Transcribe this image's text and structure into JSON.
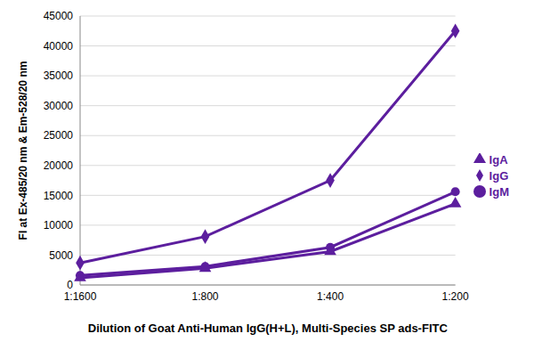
{
  "chart_data": {
    "type": "line",
    "xlabel": "Dilution of Goat Anti-Human IgG(H+L), Multi-Species SP ads-FITC",
    "ylabel": "FI at Ex-485/20 nm & Em-528/20 nm",
    "categories": [
      "1:1600",
      "1:800",
      "1:400",
      "1:200"
    ],
    "series": [
      {
        "name": "IgG",
        "color": "#5c1e9e",
        "marker": "diamond",
        "values": [
          3700,
          8100,
          17500,
          42500
        ]
      },
      {
        "name": "IgM",
        "color": "#5c1e9e",
        "marker": "circle",
        "values": [
          1600,
          3100,
          6300,
          15600
        ]
      },
      {
        "name": "IgA",
        "color": "#5c1e9e",
        "marker": "triangle",
        "values": [
          1200,
          2800,
          5600,
          13600
        ]
      }
    ],
    "ylim": [
      0,
      45000
    ],
    "yticks": [
      0,
      5000,
      10000,
      15000,
      20000,
      25000,
      30000,
      35000,
      40000,
      45000
    ],
    "grid": true,
    "legend": "right"
  }
}
